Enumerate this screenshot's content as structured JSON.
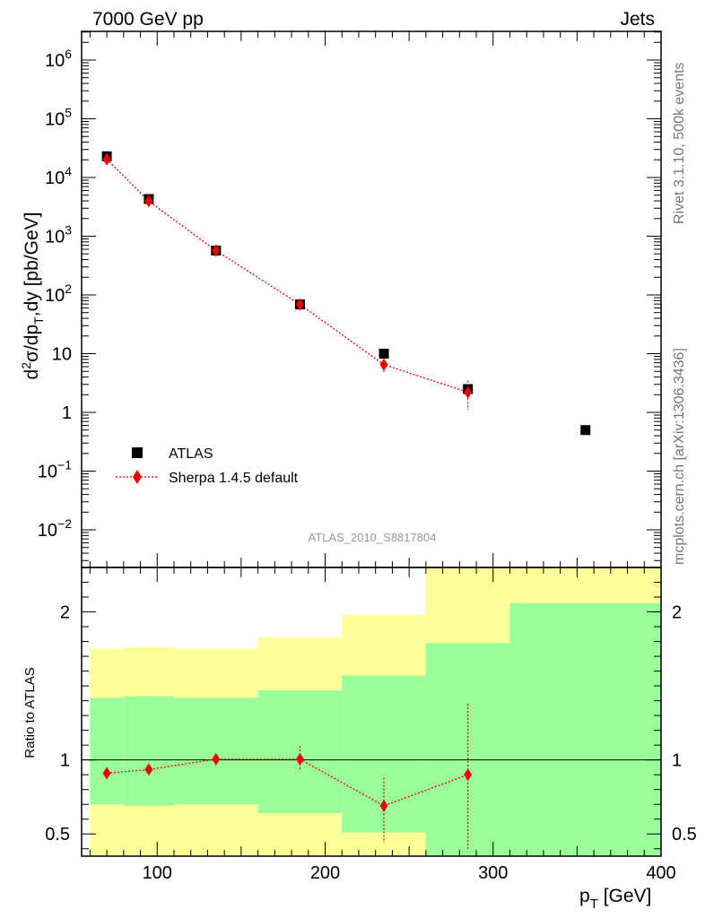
{
  "header": {
    "left": "7000 GeV pp",
    "right": "Jets"
  },
  "side": {
    "rivet": "Rivet 3.1.10,  500k events",
    "mcplots": "mcplots.cern.ch [arXiv:1306.3436]"
  },
  "analysis_label": "ATLAS_2010_S8817804",
  "colors": {
    "atlas": "#000000",
    "mc": "#ee0000",
    "band_inner": "#99ff99",
    "band_outer": "#ffff99"
  },
  "chart_data": [
    {
      "type": "scatter",
      "role": "main",
      "yscale": "log",
      "ylabel": "d²σ/dp_T,dy [pb/GeV]",
      "ylim": [
        0.004,
        3000000
      ],
      "xlim": [
        55,
        400
      ],
      "ytick_labels": [
        "10^6",
        "10^5",
        "10^4",
        "10^3",
        "10^2",
        "10",
        "1",
        "10^-1",
        "10^-2"
      ],
      "legend": {
        "position": "lower-left",
        "entries": [
          "ATLAS",
          "Sherpa 1.4.5 default"
        ]
      },
      "series": [
        {
          "name": "ATLAS",
          "x": [
            70,
            95,
            135,
            185,
            235,
            285,
            355
          ],
          "y": [
            23000,
            4300,
            570,
            69,
            10,
            2.5,
            0.5
          ]
        },
        {
          "name": "Sherpa 1.4.5 default",
          "x": [
            70,
            95,
            135,
            185,
            235,
            285
          ],
          "y": [
            20500,
            3950,
            570,
            69,
            6.5,
            2.2
          ],
          "err_lo": [
            500,
            120,
            20,
            3,
            1.8,
            1.1
          ],
          "err_hi": [
            500,
            120,
            20,
            3,
            1.5,
            1.3
          ]
        }
      ]
    },
    {
      "type": "ratio",
      "role": "ratio",
      "ylabel": "Ratio to ATLAS",
      "ylim": [
        0.35,
        2.3
      ],
      "xlim": [
        55,
        400
      ],
      "xlabel": "p_T [GeV]",
      "yticks": [
        0.5,
        1,
        2
      ],
      "ytick_labels": [
        "0.5",
        "1",
        "2"
      ],
      "xticks": [
        100,
        200,
        300,
        400
      ],
      "xtick_labels": [
        "100",
        "200",
        "300",
        "400"
      ],
      "bands": [
        {
          "xlo": 60,
          "xhi": 80,
          "inner": [
            0.7,
            1.42
          ],
          "outer": [
            0.35,
            1.75
          ]
        },
        {
          "xlo": 80,
          "xhi": 110,
          "inner": [
            0.69,
            1.43
          ],
          "outer": [
            0.35,
            1.76
          ]
        },
        {
          "xlo": 110,
          "xhi": 160,
          "inner": [
            0.7,
            1.42
          ],
          "outer": [
            0.35,
            1.75
          ]
        },
        {
          "xlo": 160,
          "xhi": 210,
          "inner": [
            0.64,
            1.47
          ],
          "outer": [
            0.35,
            1.83
          ]
        },
        {
          "xlo": 210,
          "xhi": 260,
          "inner": [
            0.51,
            1.57
          ],
          "outer": [
            0.35,
            1.98
          ]
        },
        {
          "xlo": 260,
          "xhi": 310,
          "inner": [
            0.35,
            1.79
          ],
          "outer": [
            0.35,
            2.3
          ]
        },
        {
          "xlo": 310,
          "xhi": 400,
          "inner": [
            0.35,
            2.06
          ],
          "outer": [
            0.35,
            2.3
          ]
        }
      ],
      "series": [
        {
          "name": "Sherpa 1.4.5 default",
          "x": [
            70,
            95,
            135,
            185,
            235,
            285
          ],
          "y": [
            0.91,
            0.935,
            1.005,
            1.005,
            0.69,
            0.9
          ],
          "err_lo": [
            0.02,
            0.02,
            0.02,
            0.07,
            0.25,
            0.5
          ],
          "err_hi": [
            0.02,
            0.02,
            0.02,
            0.09,
            0.19,
            0.48
          ]
        }
      ]
    }
  ]
}
